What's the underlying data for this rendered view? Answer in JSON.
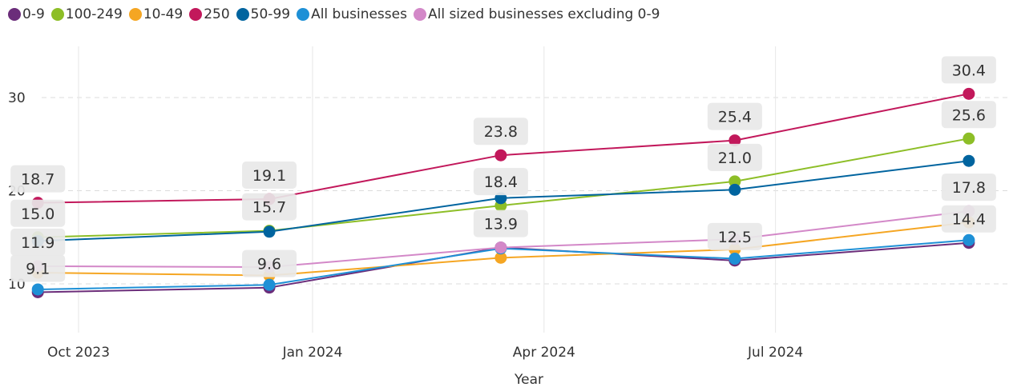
{
  "chart_data": {
    "type": "line",
    "xlabel": "Year",
    "ylabel": "",
    "ylim": [
      4.7,
      35.3
    ],
    "yticks": [
      10,
      20,
      30
    ],
    "x_ticks": [
      "Oct 2023",
      "Jan 2024",
      "Apr 2024",
      "Jul 2024"
    ],
    "x": [
      "2023-09-15",
      "2023-12-15",
      "2024-03-15",
      "2024-06-15",
      "2024-09-15"
    ],
    "grid": true,
    "legend_position": "top-left",
    "series": [
      {
        "name": "0-9",
        "color": "#6B2D7A",
        "values": [
          9.1,
          9.6,
          13.9,
          12.5,
          14.4
        ]
      },
      {
        "name": "100-249",
        "color": "#8DBE27",
        "values": [
          15.0,
          15.7,
          18.4,
          21.0,
          25.6
        ]
      },
      {
        "name": "10-49",
        "color": "#F5A623",
        "values": [
          11.2,
          10.9,
          12.8,
          13.7,
          16.6
        ]
      },
      {
        "name": "250",
        "color": "#C2185B",
        "values": [
          18.7,
          19.1,
          23.8,
          25.4,
          30.4
        ]
      },
      {
        "name": "50-99",
        "color": "#00649F",
        "values": [
          14.6,
          15.6,
          19.2,
          20.1,
          23.2
        ]
      },
      {
        "name": "All businesses",
        "color": "#1E90D6",
        "values": [
          9.4,
          9.9,
          13.8,
          12.7,
          14.7
        ]
      },
      {
        "name": "All sized businesses excluding 0-9",
        "color": "#D388C8",
        "values": [
          11.9,
          11.8,
          13.9,
          14.8,
          17.8
        ]
      }
    ],
    "data_labels": {
      "0-9": [
        "9.1",
        "9.6",
        "13.9",
        "12.5",
        "14.4"
      ],
      "100-249": [
        "15.0",
        "15.7",
        "18.4",
        "21.0",
        "25.6"
      ],
      "250": [
        "18.7",
        "19.1",
        "23.8",
        "25.4",
        "30.4"
      ],
      "All sized businesses excluding 0-9": [
        "11.9",
        null,
        null,
        null,
        "17.8"
      ]
    }
  }
}
